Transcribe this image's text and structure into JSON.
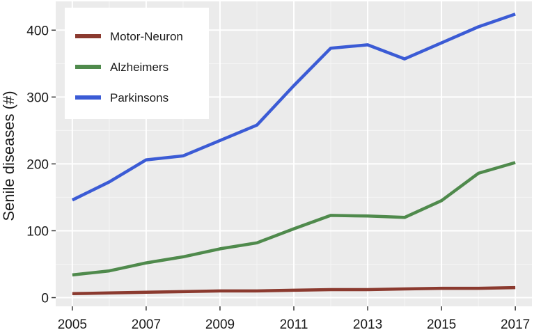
{
  "chart_data": {
    "type": "line",
    "title": "",
    "xlabel": "",
    "ylabel": "Senile diseases (#)",
    "x": [
      2005,
      2006,
      2007,
      2008,
      2009,
      2010,
      2011,
      2012,
      2013,
      2014,
      2015,
      2016,
      2017
    ],
    "x_ticks": [
      "2005",
      "2007",
      "2009",
      "2011",
      "2013",
      "2015",
      "2017"
    ],
    "y_ticks": [
      "0",
      "100",
      "200",
      "300",
      "400"
    ],
    "xlim": [
      2004.55,
      2017.45
    ],
    "ylim": [
      -13,
      443
    ],
    "grid": true,
    "legend_position": "top-left",
    "series": [
      {
        "name": "Motor-Neuron",
        "color": "#8b3a2f",
        "values": [
          6,
          7,
          8,
          9,
          10,
          10,
          11,
          12,
          12,
          13,
          14,
          14,
          15
        ]
      },
      {
        "name": "Alzheimers",
        "color": "#4f8a4c",
        "values": [
          34,
          40,
          52,
          61,
          73,
          82,
          103,
          123,
          122,
          120,
          145,
          186,
          202
        ]
      },
      {
        "name": "Parkinsons",
        "color": "#3b5bd5",
        "values": [
          146,
          173,
          206,
          212,
          235,
          258,
          317,
          373,
          378,
          357,
          381,
          405,
          424
        ]
      }
    ]
  }
}
